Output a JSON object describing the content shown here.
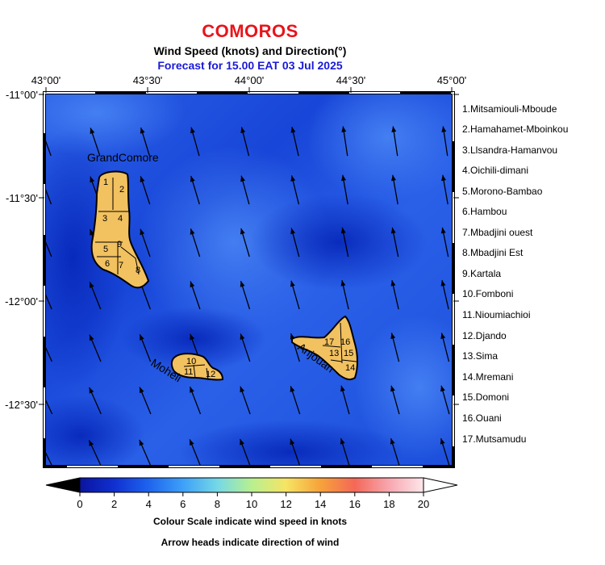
{
  "header": {
    "title": "COMOROS",
    "subtitle": "Wind Speed (knots) and Direction(°)",
    "forecast": "Forecast for  15.00 EAT 03 Jul 2025"
  },
  "map": {
    "lon_ticks": [
      "43°00'",
      "43°30'",
      "44°00'",
      "44°30'",
      "45°00'"
    ],
    "lat_ticks": [
      "-11°00'",
      "-11°30'",
      "-12°00'",
      "-12°30'"
    ],
    "island_labels": {
      "grande_comore": "GrandComore",
      "moheli": "Moheli",
      "anjouan": "Anjouan"
    },
    "region_numbers": [
      "1",
      "2",
      "3",
      "4",
      "5",
      "6",
      "7",
      "8",
      "9",
      "10",
      "11",
      "12",
      "13",
      "14",
      "15",
      "16",
      "17"
    ],
    "colors": {
      "land": "#f2c160",
      "outline": "#000000",
      "sea_deep": "#0a2fc9",
      "sea_light": "#2f6bea"
    }
  },
  "legend": [
    "1.Mitsamiouli-Mboude",
    "2.Hamahamet-Mboinkou",
    "3.Llsandra-Hamanvou",
    "4.Oichili-dimani",
    "5.Morono-Bambao",
    "6.Hambou",
    "7.Mbadjini ouest",
    "8.Mbadjini Est",
    "9.Kartala",
    "10.Fomboni",
    "11.Nioumiachioi",
    "12.Djando",
    "13.Sima",
    "14.Mremani",
    "15.Domoni",
    "16.Ouani",
    "17.Mutsamudu"
  ],
  "colorbar": {
    "ticks": [
      "0",
      "2",
      "4",
      "6",
      "8",
      "10",
      "12",
      "14",
      "16",
      "18",
      "20"
    ],
    "caption1": "Colour Scale indicate wind speed in knots",
    "caption2": "Arrow heads indicate direction of wind"
  }
}
